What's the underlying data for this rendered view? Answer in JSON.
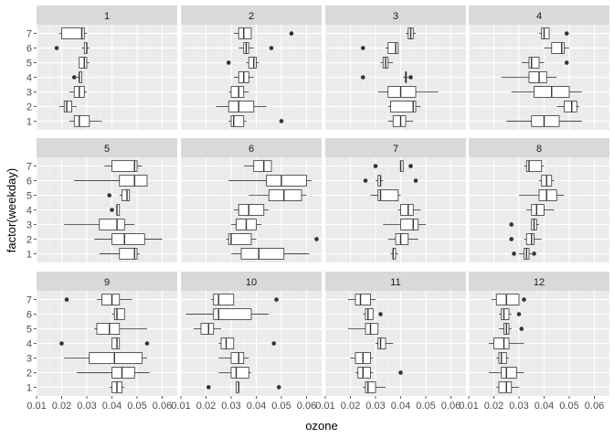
{
  "chart_data": {
    "type": "boxplot",
    "facet": "month",
    "xlabel": "ozone",
    "ylabel": "factor(weekday)",
    "xlim": [
      0.01,
      0.066
    ],
    "xticks": [
      "0.01",
      "0.02",
      "0.03",
      "0.04",
      "0.05",
      "0.06"
    ],
    "yticks": [
      "1",
      "2",
      "3",
      "4",
      "5",
      "6",
      "7"
    ],
    "colors": {
      "panel_bg": "#ebebeb",
      "strip_bg": "#d9d9d9",
      "grid_major": "#ffffff",
      "box_fill": "#ffffff",
      "box_line": "#333333"
    },
    "panels": [
      {
        "label": "1",
        "boxes": [
          {
            "weekday": 1,
            "lo": 0.023,
            "q1": 0.025,
            "med": 0.027,
            "q3": 0.031,
            "hi": 0.036,
            "out": []
          },
          {
            "weekday": 2,
            "lo": 0.019,
            "q1": 0.021,
            "med": 0.022,
            "q3": 0.024,
            "hi": 0.026,
            "out": []
          },
          {
            "weekday": 3,
            "lo": 0.023,
            "q1": 0.025,
            "med": 0.027,
            "q3": 0.029,
            "hi": 0.03,
            "out": []
          },
          {
            "weekday": 4,
            "lo": 0.026,
            "q1": 0.027,
            "med": 0.027,
            "q3": 0.028,
            "hi": 0.028,
            "out": [
              0.025
            ]
          },
          {
            "weekday": 5,
            "lo": 0.027,
            "q1": 0.027,
            "med": 0.029,
            "q3": 0.03,
            "hi": 0.031,
            "out": []
          },
          {
            "weekday": 6,
            "lo": 0.028,
            "q1": 0.029,
            "med": 0.03,
            "q3": 0.03,
            "hi": 0.031,
            "out": [
              0.018
            ]
          },
          {
            "weekday": 7,
            "lo": 0.019,
            "q1": 0.02,
            "med": 0.028,
            "q3": 0.029,
            "hi": 0.03,
            "out": []
          }
        ]
      },
      {
        "label": "2",
        "boxes": [
          {
            "weekday": 1,
            "lo": 0.029,
            "q1": 0.03,
            "med": 0.031,
            "q3": 0.035,
            "hi": 0.036,
            "out": [
              0.05
            ]
          },
          {
            "weekday": 2,
            "lo": 0.024,
            "q1": 0.029,
            "med": 0.033,
            "q3": 0.039,
            "hi": 0.044,
            "out": []
          },
          {
            "weekday": 3,
            "lo": 0.029,
            "q1": 0.03,
            "med": 0.033,
            "q3": 0.035,
            "hi": 0.037,
            "out": []
          },
          {
            "weekday": 4,
            "lo": 0.031,
            "q1": 0.033,
            "med": 0.035,
            "q3": 0.037,
            "hi": 0.039,
            "out": []
          },
          {
            "weekday": 5,
            "lo": 0.036,
            "q1": 0.037,
            "med": 0.039,
            "q3": 0.04,
            "hi": 0.041,
            "out": [
              0.029
            ]
          },
          {
            "weekday": 6,
            "lo": 0.033,
            "q1": 0.035,
            "med": 0.036,
            "q3": 0.037,
            "hi": 0.039,
            "out": [
              0.046
            ]
          },
          {
            "weekday": 7,
            "lo": 0.031,
            "q1": 0.033,
            "med": 0.035,
            "q3": 0.038,
            "hi": 0.038,
            "out": [
              0.054
            ]
          }
        ]
      },
      {
        "label": "3",
        "boxes": [
          {
            "weekday": 1,
            "lo": 0.035,
            "q1": 0.037,
            "med": 0.04,
            "q3": 0.042,
            "hi": 0.045,
            "out": []
          },
          {
            "weekday": 2,
            "lo": 0.035,
            "q1": 0.036,
            "med": 0.045,
            "q3": 0.046,
            "hi": 0.048,
            "out": []
          },
          {
            "weekday": 3,
            "lo": 0.031,
            "q1": 0.035,
            "med": 0.04,
            "q3": 0.046,
            "hi": 0.055,
            "out": []
          },
          {
            "weekday": 4,
            "lo": 0.041,
            "q1": 0.042,
            "med": 0.042,
            "q3": 0.042,
            "hi": 0.043,
            "out": [
              0.025,
              0.044
            ]
          },
          {
            "weekday": 5,
            "lo": 0.032,
            "q1": 0.033,
            "med": 0.034,
            "q3": 0.035,
            "hi": 0.037,
            "out": []
          },
          {
            "weekday": 6,
            "lo": 0.034,
            "q1": 0.035,
            "med": 0.038,
            "q3": 0.039,
            "hi": 0.039,
            "out": [
              0.025
            ]
          },
          {
            "weekday": 7,
            "lo": 0.042,
            "q1": 0.043,
            "med": 0.044,
            "q3": 0.045,
            "hi": 0.046,
            "out": []
          }
        ]
      },
      {
        "label": "4",
        "boxes": [
          {
            "weekday": 1,
            "lo": 0.025,
            "q1": 0.035,
            "med": 0.04,
            "q3": 0.046,
            "hi": 0.055,
            "out": []
          },
          {
            "weekday": 2,
            "lo": 0.045,
            "q1": 0.048,
            "med": 0.051,
            "q3": 0.053,
            "hi": 0.054,
            "out": []
          },
          {
            "weekday": 3,
            "lo": 0.027,
            "q1": 0.036,
            "med": 0.043,
            "q3": 0.05,
            "hi": 0.055,
            "out": []
          },
          {
            "weekday": 4,
            "lo": 0.023,
            "q1": 0.034,
            "med": 0.038,
            "q3": 0.041,
            "hi": 0.045,
            "out": []
          },
          {
            "weekday": 5,
            "lo": 0.031,
            "q1": 0.034,
            "med": 0.035,
            "q3": 0.038,
            "hi": 0.04,
            "out": [
              0.049
            ]
          },
          {
            "weekday": 6,
            "lo": 0.04,
            "q1": 0.043,
            "med": 0.047,
            "q3": 0.048,
            "hi": 0.05,
            "out": []
          },
          {
            "weekday": 7,
            "lo": 0.038,
            "q1": 0.039,
            "med": 0.04,
            "q3": 0.042,
            "hi": 0.042,
            "out": [
              0.049
            ]
          }
        ]
      },
      {
        "label": "5",
        "boxes": [
          {
            "weekday": 1,
            "lo": 0.035,
            "q1": 0.043,
            "med": 0.049,
            "q3": 0.05,
            "hi": 0.051,
            "out": []
          },
          {
            "weekday": 2,
            "lo": 0.033,
            "q1": 0.04,
            "med": 0.045,
            "q3": 0.053,
            "hi": 0.06,
            "out": []
          },
          {
            "weekday": 3,
            "lo": 0.021,
            "q1": 0.035,
            "med": 0.042,
            "q3": 0.045,
            "hi": 0.049,
            "out": []
          },
          {
            "weekday": 4,
            "lo": 0.042,
            "q1": 0.042,
            "med": 0.042,
            "q3": 0.043,
            "hi": 0.043,
            "out": [
              0.04
            ]
          },
          {
            "weekday": 5,
            "lo": 0.043,
            "q1": 0.044,
            "med": 0.046,
            "q3": 0.047,
            "hi": 0.047,
            "out": [
              0.039
            ]
          },
          {
            "weekday": 6,
            "lo": 0.025,
            "q1": 0.043,
            "med": 0.049,
            "q3": 0.054,
            "hi": 0.054,
            "out": []
          },
          {
            "weekday": 7,
            "lo": 0.037,
            "q1": 0.04,
            "med": 0.049,
            "q3": 0.05,
            "hi": 0.052,
            "out": []
          }
        ]
      },
      {
        "label": "6",
        "boxes": [
          {
            "weekday": 1,
            "lo": 0.03,
            "q1": 0.034,
            "med": 0.041,
            "q3": 0.051,
            "hi": 0.061,
            "out": []
          },
          {
            "weekday": 2,
            "lo": 0.028,
            "q1": 0.029,
            "med": 0.03,
            "q3": 0.038,
            "hi": 0.04,
            "out": [
              0.064
            ]
          },
          {
            "weekday": 3,
            "lo": 0.03,
            "q1": 0.032,
            "med": 0.036,
            "q3": 0.04,
            "hi": 0.042,
            "out": []
          },
          {
            "weekday": 4,
            "lo": 0.031,
            "q1": 0.033,
            "med": 0.037,
            "q3": 0.043,
            "hi": 0.045,
            "out": []
          },
          {
            "weekday": 5,
            "lo": 0.037,
            "q1": 0.045,
            "med": 0.051,
            "q3": 0.058,
            "hi": 0.06,
            "out": []
          },
          {
            "weekday": 6,
            "lo": 0.029,
            "q1": 0.044,
            "med": 0.05,
            "q3": 0.06,
            "hi": 0.062,
            "out": []
          },
          {
            "weekday": 7,
            "lo": 0.035,
            "q1": 0.039,
            "med": 0.043,
            "q3": 0.046,
            "hi": 0.046,
            "out": []
          }
        ]
      },
      {
        "label": "7",
        "boxes": [
          {
            "weekday": 1,
            "lo": 0.036,
            "q1": 0.037,
            "med": 0.037,
            "q3": 0.038,
            "hi": 0.039,
            "out": []
          },
          {
            "weekday": 2,
            "lo": 0.035,
            "q1": 0.038,
            "med": 0.04,
            "q3": 0.043,
            "hi": 0.047,
            "out": []
          },
          {
            "weekday": 3,
            "lo": 0.033,
            "q1": 0.04,
            "med": 0.045,
            "q3": 0.047,
            "hi": 0.05,
            "out": []
          },
          {
            "weekday": 4,
            "lo": 0.039,
            "q1": 0.04,
            "med": 0.043,
            "q3": 0.045,
            "hi": 0.048,
            "out": []
          },
          {
            "weekday": 5,
            "lo": 0.028,
            "q1": 0.031,
            "med": 0.032,
            "q3": 0.039,
            "hi": 0.04,
            "out": []
          },
          {
            "weekday": 6,
            "lo": 0.03,
            "q1": 0.031,
            "med": 0.032,
            "q3": 0.032,
            "hi": 0.033,
            "out": [
              0.026,
              0.046
            ]
          },
          {
            "weekday": 7,
            "lo": 0.04,
            "q1": 0.04,
            "med": 0.04,
            "q3": 0.041,
            "hi": 0.041,
            "out": [
              0.03,
              0.044
            ]
          }
        ]
      },
      {
        "label": "8",
        "boxes": [
          {
            "weekday": 1,
            "lo": 0.03,
            "q1": 0.032,
            "med": 0.033,
            "q3": 0.034,
            "hi": 0.035,
            "out": [
              0.028,
              0.036
            ]
          },
          {
            "weekday": 2,
            "lo": 0.032,
            "q1": 0.033,
            "med": 0.035,
            "q3": 0.036,
            "hi": 0.039,
            "out": [
              0.027
            ]
          },
          {
            "weekday": 3,
            "lo": 0.035,
            "q1": 0.035,
            "med": 0.036,
            "q3": 0.037,
            "hi": 0.038,
            "out": [
              0.027
            ]
          },
          {
            "weekday": 4,
            "lo": 0.033,
            "q1": 0.035,
            "med": 0.037,
            "q3": 0.04,
            "hi": 0.044,
            "out": []
          },
          {
            "weekday": 5,
            "lo": 0.03,
            "q1": 0.038,
            "med": 0.041,
            "q3": 0.045,
            "hi": 0.048,
            "out": []
          },
          {
            "weekday": 6,
            "lo": 0.038,
            "q1": 0.039,
            "med": 0.041,
            "q3": 0.043,
            "hi": 0.044,
            "out": []
          },
          {
            "weekday": 7,
            "lo": 0.032,
            "q1": 0.033,
            "med": 0.034,
            "q3": 0.039,
            "hi": 0.04,
            "out": []
          }
        ]
      },
      {
        "label": "9",
        "boxes": [
          {
            "weekday": 1,
            "lo": 0.039,
            "q1": 0.04,
            "med": 0.042,
            "q3": 0.044,
            "hi": 0.045,
            "out": []
          },
          {
            "weekday": 2,
            "lo": 0.026,
            "q1": 0.04,
            "med": 0.044,
            "q3": 0.049,
            "hi": 0.055,
            "out": []
          },
          {
            "weekday": 3,
            "lo": 0.021,
            "q1": 0.031,
            "med": 0.041,
            "q3": 0.052,
            "hi": 0.054,
            "out": []
          },
          {
            "weekday": 4,
            "lo": 0.04,
            "q1": 0.04,
            "med": 0.042,
            "q3": 0.043,
            "hi": 0.043,
            "out": [
              0.02,
              0.054
            ]
          },
          {
            "weekday": 5,
            "lo": 0.033,
            "q1": 0.034,
            "med": 0.039,
            "q3": 0.043,
            "hi": 0.054,
            "out": []
          },
          {
            "weekday": 6,
            "lo": 0.04,
            "q1": 0.041,
            "med": 0.042,
            "q3": 0.045,
            "hi": 0.045,
            "out": []
          },
          {
            "weekday": 7,
            "lo": 0.034,
            "q1": 0.036,
            "med": 0.04,
            "q3": 0.043,
            "hi": 0.048,
            "out": [
              0.022
            ]
          }
        ]
      },
      {
        "label": "10",
        "boxes": [
          {
            "weekday": 1,
            "lo": 0.032,
            "q1": 0.032,
            "med": 0.033,
            "q3": 0.033,
            "hi": 0.033,
            "out": [
              0.021,
              0.049
            ]
          },
          {
            "weekday": 2,
            "lo": 0.025,
            "q1": 0.03,
            "med": 0.032,
            "q3": 0.037,
            "hi": 0.038,
            "out": []
          },
          {
            "weekday": 3,
            "lo": 0.025,
            "q1": 0.03,
            "med": 0.033,
            "q3": 0.035,
            "hi": 0.037,
            "out": []
          },
          {
            "weekday": 4,
            "lo": 0.025,
            "q1": 0.026,
            "med": 0.028,
            "q3": 0.031,
            "hi": 0.031,
            "out": [
              0.047
            ]
          },
          {
            "weekday": 5,
            "lo": 0.015,
            "q1": 0.018,
            "med": 0.021,
            "q3": 0.023,
            "hi": 0.026,
            "out": []
          },
          {
            "weekday": 6,
            "lo": 0.012,
            "q1": 0.023,
            "med": 0.025,
            "q3": 0.038,
            "hi": 0.045,
            "out": []
          },
          {
            "weekday": 7,
            "lo": 0.022,
            "q1": 0.023,
            "med": 0.025,
            "q3": 0.031,
            "hi": 0.031,
            "out": [
              0.048
            ]
          }
        ]
      },
      {
        "label": "11",
        "boxes": [
          {
            "weekday": 1,
            "lo": 0.025,
            "q1": 0.026,
            "med": 0.027,
            "q3": 0.03,
            "hi": 0.034,
            "out": []
          },
          {
            "weekday": 2,
            "lo": 0.022,
            "q1": 0.023,
            "med": 0.025,
            "q3": 0.028,
            "hi": 0.029,
            "out": [
              0.04
            ]
          },
          {
            "weekday": 3,
            "lo": 0.02,
            "q1": 0.022,
            "med": 0.025,
            "q3": 0.028,
            "hi": 0.029,
            "out": []
          },
          {
            "weekday": 4,
            "lo": 0.03,
            "q1": 0.031,
            "med": 0.032,
            "q3": 0.034,
            "hi": 0.037,
            "out": []
          },
          {
            "weekday": 5,
            "lo": 0.019,
            "q1": 0.026,
            "med": 0.028,
            "q3": 0.031,
            "hi": 0.031,
            "out": []
          },
          {
            "weekday": 6,
            "lo": 0.025,
            "q1": 0.026,
            "med": 0.027,
            "q3": 0.029,
            "hi": 0.029,
            "out": [
              0.032
            ]
          },
          {
            "weekday": 7,
            "lo": 0.019,
            "q1": 0.022,
            "med": 0.024,
            "q3": 0.028,
            "hi": 0.03,
            "out": []
          }
        ]
      },
      {
        "label": "12",
        "boxes": [
          {
            "weekday": 1,
            "lo": 0.021,
            "q1": 0.022,
            "med": 0.025,
            "q3": 0.027,
            "hi": 0.03,
            "out": []
          },
          {
            "weekday": 2,
            "lo": 0.018,
            "q1": 0.023,
            "med": 0.025,
            "q3": 0.029,
            "hi": 0.032,
            "out": []
          },
          {
            "weekday": 3,
            "lo": 0.021,
            "q1": 0.022,
            "med": 0.023,
            "q3": 0.025,
            "hi": 0.026,
            "out": []
          },
          {
            "weekday": 4,
            "lo": 0.018,
            "q1": 0.02,
            "med": 0.024,
            "q3": 0.026,
            "hi": 0.032,
            "out": []
          },
          {
            "weekday": 5,
            "lo": 0.022,
            "q1": 0.024,
            "med": 0.025,
            "q3": 0.026,
            "hi": 0.027,
            "out": [
              0.031
            ]
          },
          {
            "weekday": 6,
            "lo": 0.022,
            "q1": 0.023,
            "med": 0.024,
            "q3": 0.026,
            "hi": 0.027,
            "out": [
              0.03
            ]
          },
          {
            "weekday": 7,
            "lo": 0.019,
            "q1": 0.021,
            "med": 0.025,
            "q3": 0.03,
            "hi": 0.03,
            "out": [
              0.032
            ]
          }
        ]
      }
    ]
  }
}
